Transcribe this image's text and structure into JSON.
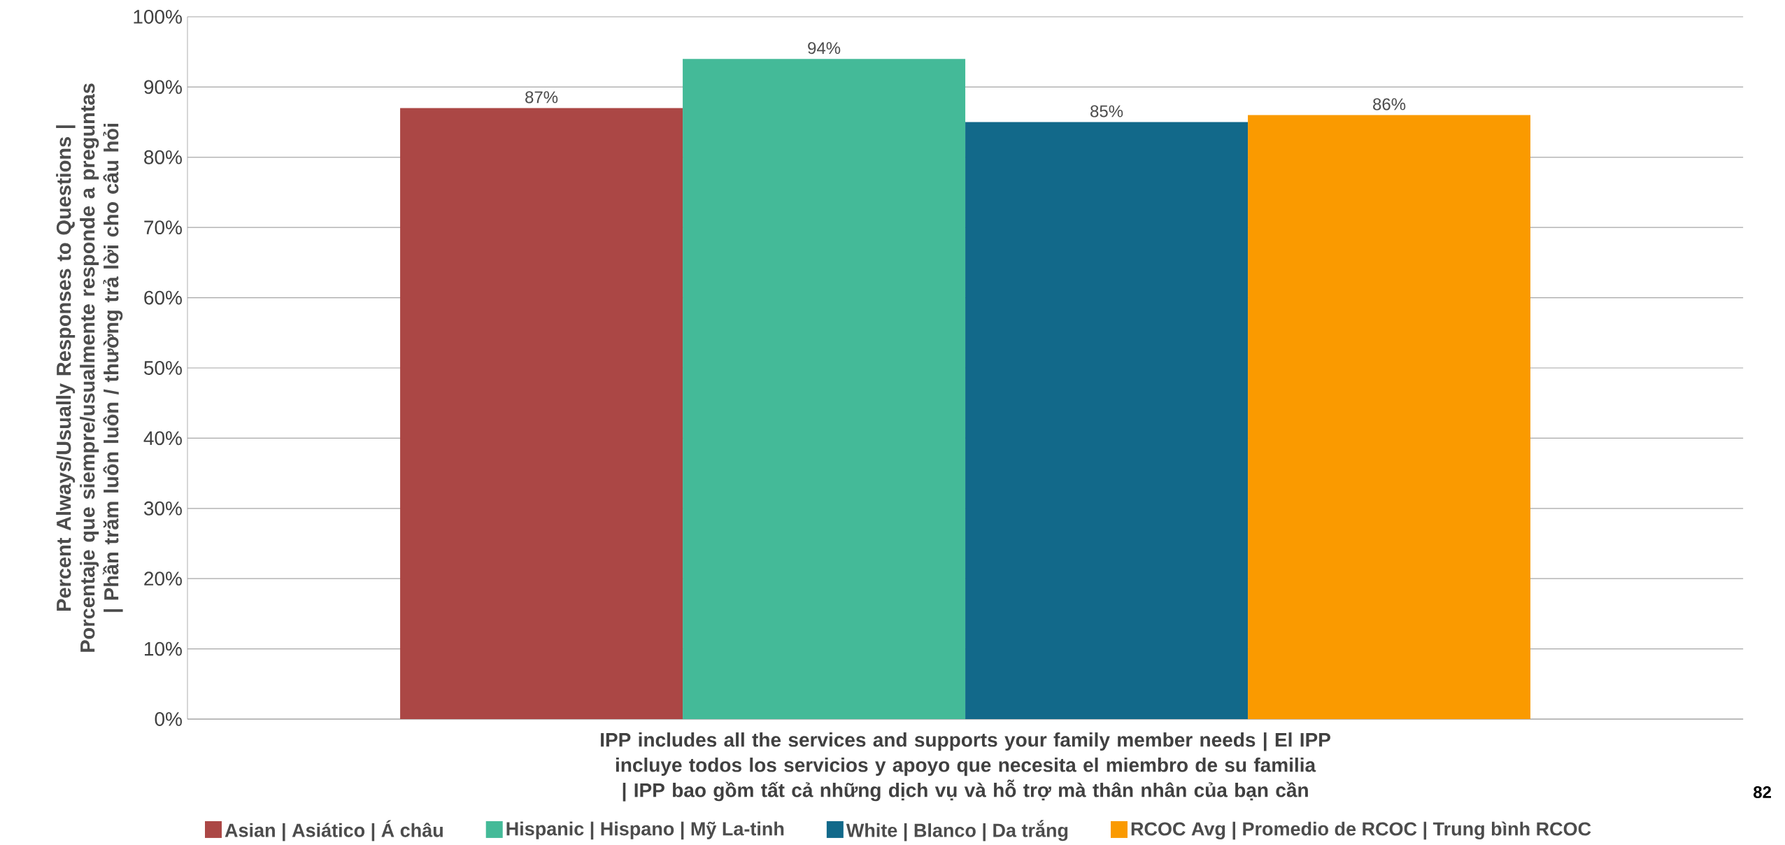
{
  "chart_data": {
    "type": "bar",
    "ylabel": "Percent Always/Usually  Responses to Questions | Porcentaje que siempre/usualmente responde a preguntas | Phần trăm luôn luôn / thường trả lời cho câu hỏi",
    "categories": [
      "IPP includes all the services and supports your family member needs | El IPP incluye todos los servicios y apoyo que necesita el miembro de su familia | IPP bao gồm tất cả những dịch vụ và hỗ trợ mà thân nhân của bạn cần"
    ],
    "series": [
      {
        "name": "Asian | Asiático | Á châu",
        "color": "#ab4745",
        "values": [
          87
        ],
        "value_labels": [
          "87%"
        ]
      },
      {
        "name": "Hispanic | Hispano | Mỹ La-tinh",
        "color": "#44ba98",
        "values": [
          94
        ],
        "value_labels": [
          "94%"
        ]
      },
      {
        "name": "White | Blanco | Da trắng",
        "color": "#12698a",
        "values": [
          85
        ],
        "value_labels": [
          "85%"
        ]
      },
      {
        "name": "RCOC Avg | Promedio de RCOC | Trung bình RCOC",
        "color": "#fa9a00",
        "values": [
          86
        ],
        "value_labels": [
          "86%"
        ]
      }
    ],
    "ylim": [
      0,
      100
    ],
    "yticks": [
      {
        "value": 0,
        "label": "0%"
      },
      {
        "value": 10,
        "label": "10%"
      },
      {
        "value": 20,
        "label": "20%"
      },
      {
        "value": 30,
        "label": "30%"
      },
      {
        "value": 40,
        "label": "40%"
      },
      {
        "value": 50,
        "label": "50%"
      },
      {
        "value": 60,
        "label": "60%"
      },
      {
        "value": 70,
        "label": "70%"
      },
      {
        "value": 80,
        "label": "80%"
      },
      {
        "value": 90,
        "label": "90%"
      },
      {
        "value": 100,
        "label": "100%"
      }
    ],
    "grid": "y",
    "legend": "bottom",
    "annotations": [
      "82"
    ]
  }
}
